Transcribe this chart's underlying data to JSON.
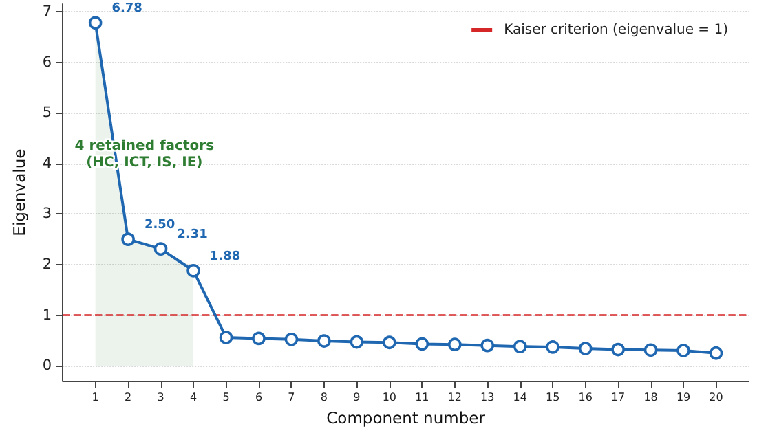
{
  "chart_data": {
    "type": "line",
    "xlabel": "Component number",
    "ylabel": "Eigenvalue",
    "x": [
      1,
      2,
      3,
      4,
      5,
      6,
      7,
      8,
      9,
      10,
      11,
      12,
      13,
      14,
      15,
      16,
      17,
      18,
      19,
      20
    ],
    "series": [
      {
        "color": "#1f67b1",
        "marker": "circle",
        "values": [
          6.78,
          2.5,
          2.31,
          1.88,
          0.56,
          0.54,
          0.52,
          0.49,
          0.47,
          0.46,
          0.43,
          0.42,
          0.4,
          0.38,
          0.37,
          0.34,
          0.32,
          0.31,
          0.3,
          0.25
        ],
        "value_labels": [
          "6.78",
          "2.50",
          "2.31",
          "1.88",
          null,
          null,
          null,
          null,
          null,
          null,
          null,
          null,
          null,
          null,
          null,
          null,
          null,
          null,
          null,
          null
        ]
      },
      {
        "type": "area",
        "color": "#2e7d32",
        "marker": "none",
        "x": [
          1,
          2,
          3,
          4
        ],
        "values": [
          6.78,
          2.5,
          2.31,
          1.88
        ]
      }
    ],
    "annotations": [
      "4 retained factors\n(HC, ICT, IS, IE)"
    ],
    "xlim": [
      0,
      21
    ],
    "xticks": [
      1,
      2,
      3,
      4,
      5,
      6,
      7,
      8,
      9,
      10,
      11,
      12,
      13,
      14,
      15,
      16,
      17,
      18,
      19,
      20
    ],
    "ylim": [
      -0.3,
      7.15
    ],
    "yticks": [
      0,
      1,
      2,
      3,
      4,
      5,
      6,
      7
    ],
    "ref_lines": [
      {
        "axis": "y",
        "value": 1,
        "label": "Kaiser criterion (eigenvalue = 1)",
        "color": "#d62728",
        "line_style": "dashed"
      }
    ],
    "grid": "y",
    "legend": "top right",
    "line_style": "solid"
  }
}
